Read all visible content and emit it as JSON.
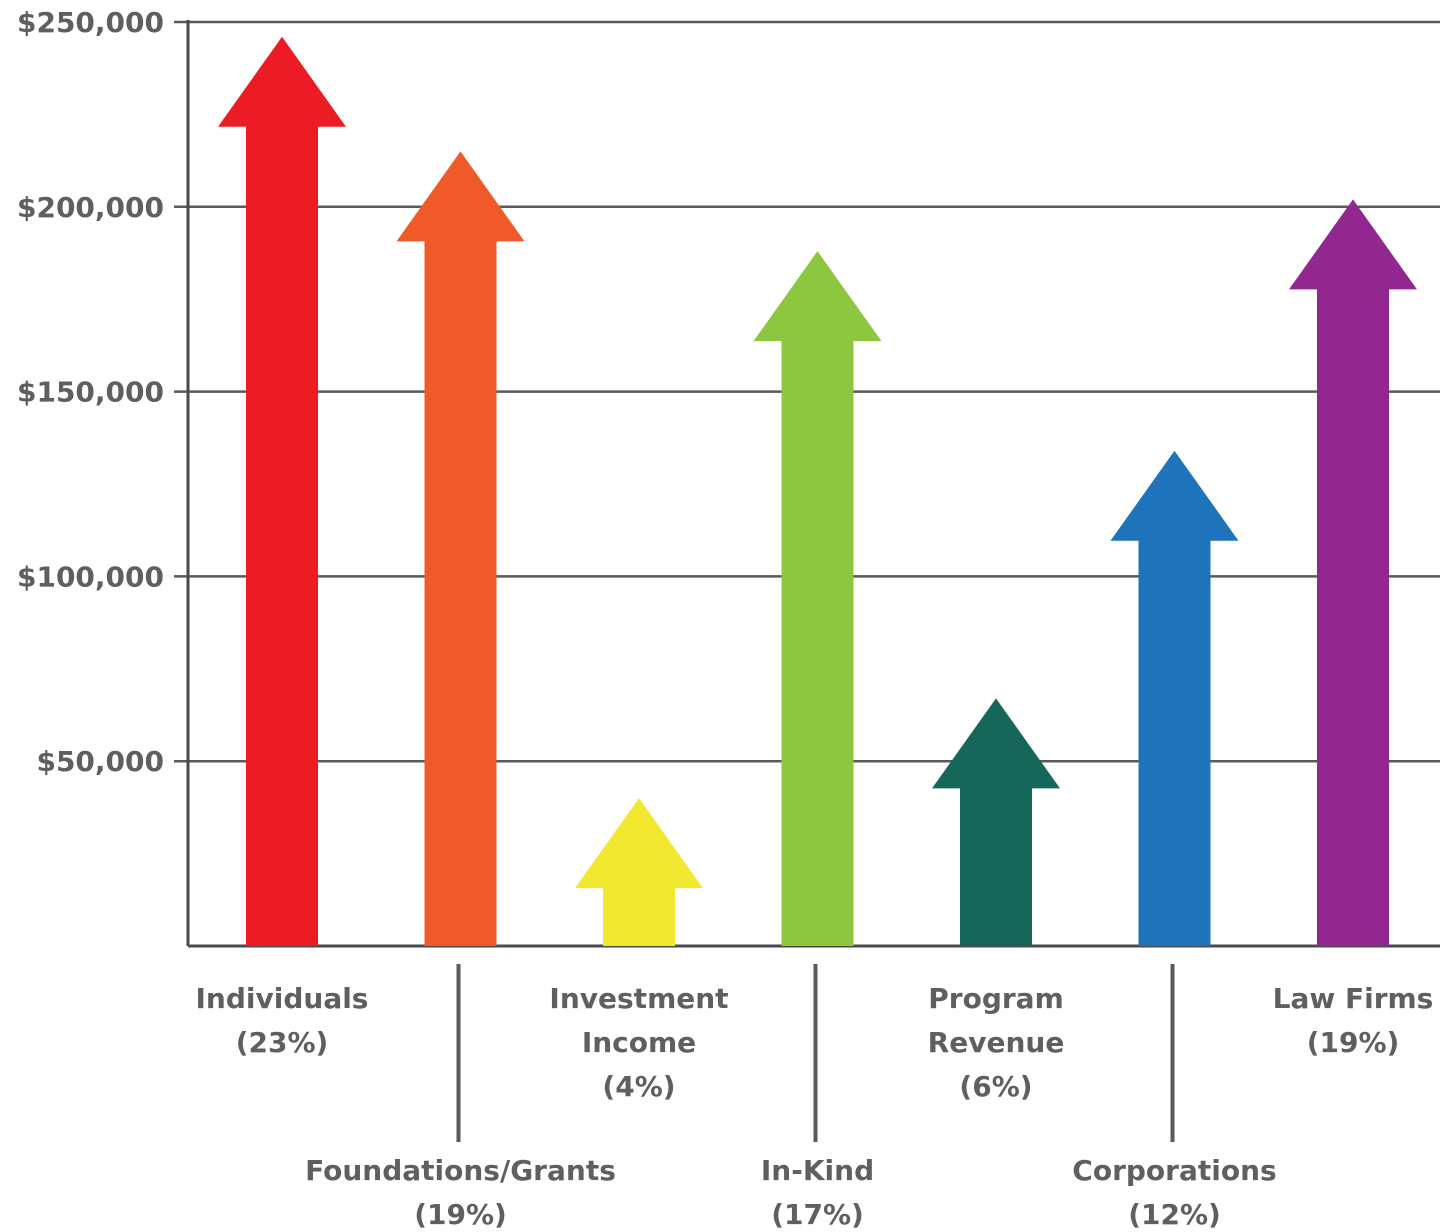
{
  "chart_data": {
    "type": "bar",
    "title": "",
    "xlabel": "",
    "ylabel": "",
    "ylim": [
      0,
      250000
    ],
    "y_ticks": [
      {
        "value": 50000,
        "label": "$50,000"
      },
      {
        "value": 100000,
        "label": "$100,000"
      },
      {
        "value": 150000,
        "label": "$150,000"
      },
      {
        "value": 200000,
        "label": "$200,000"
      },
      {
        "value": 250000,
        "label": "$250,000"
      }
    ],
    "grid": true,
    "mark_shape": "arrow",
    "categories": [
      {
        "name": "Individuals",
        "label_lines": [
          "Individuals",
          "(23%)"
        ],
        "percent": "23%",
        "value": 246000,
        "color": "#ed1c24",
        "label_row": "top"
      },
      {
        "name": "Foundations/Grants",
        "label_lines": [
          "Foundations/Grants",
          "(19%)"
        ],
        "percent": "19%",
        "value": 215000,
        "color": "#f05a28",
        "label_row": "bottom"
      },
      {
        "name": "Investment Income",
        "label_lines": [
          "Investment",
          "Income",
          "(4%)"
        ],
        "percent": "4%",
        "value": 40000,
        "color": "#f2e830",
        "label_row": "top"
      },
      {
        "name": "In-Kind",
        "label_lines": [
          "In-Kind",
          "(17%)"
        ],
        "percent": "17%",
        "value": 188000,
        "color": "#8dc63f",
        "label_row": "bottom"
      },
      {
        "name": "Program Revenue",
        "label_lines": [
          "Program",
          "Revenue",
          "(6%)"
        ],
        "percent": "6%",
        "value": 67000,
        "color": "#16665a",
        "label_row": "top"
      },
      {
        "name": "Corporations",
        "label_lines": [
          "Corporations",
          "(12%)"
        ],
        "percent": "12%",
        "value": 134000,
        "color": "#1e73ba",
        "label_row": "bottom"
      },
      {
        "name": "Law Firms",
        "label_lines": [
          "Law Firms",
          "(19%)"
        ],
        "percent": "19%",
        "value": 202000,
        "color": "#92278f",
        "label_row": "top"
      }
    ]
  }
}
